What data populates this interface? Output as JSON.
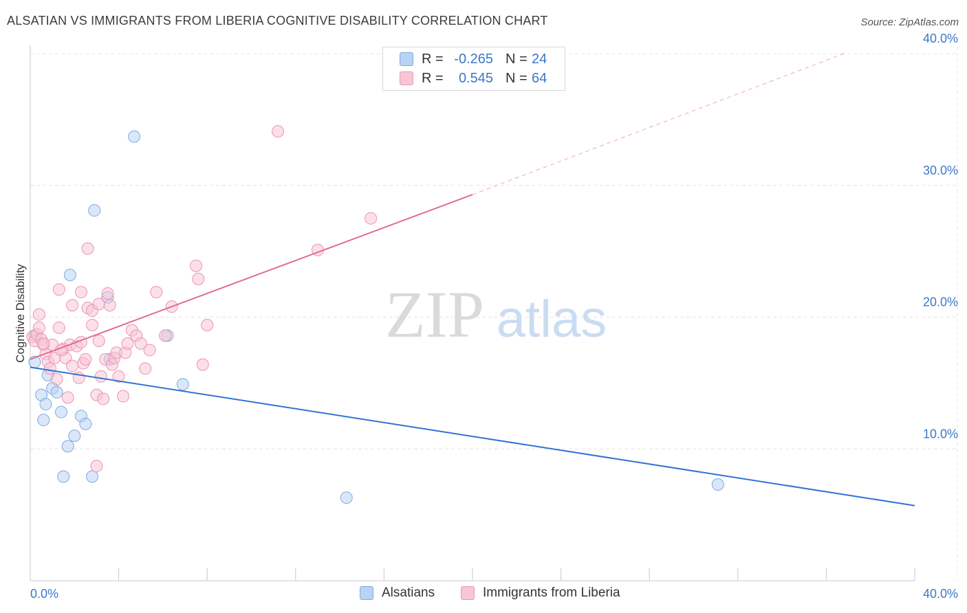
{
  "title": "ALSATIAN VS IMMIGRANTS FROM LIBERIA COGNITIVE DISABILITY CORRELATION CHART",
  "source": "Source: ZipAtlas.com",
  "watermark": {
    "zip": "ZIP",
    "atlas": "atlas"
  },
  "legend": {
    "rows": [
      {
        "r_label": "R =",
        "r_value": "-0.265",
        "n_label": "N =",
        "n_value": "24"
      },
      {
        "r_label": "R =",
        "r_value": "0.545",
        "n_label": "N =",
        "n_value": "64"
      }
    ]
  },
  "bottom_legend": {
    "series1": "Alsatians",
    "series2": "Immigrants from Liberia"
  },
  "chart_data": {
    "type": "scatter",
    "ylabel": "Cognitive Disability",
    "xlim": [
      0,
      40
    ],
    "ylim": [
      0,
      40
    ],
    "x_tick_labels": [
      "0.0%",
      "40.0%"
    ],
    "y_ticks": [
      10,
      20,
      30,
      40
    ],
    "y_tick_labels": [
      "10.0%",
      "20.0%",
      "30.0%",
      "40.0%"
    ],
    "grid": true,
    "legend_position": "top-center",
    "colors": {
      "alsatians_fill": "#b9d3f3",
      "alsatians_stroke": "#7fa9e0",
      "alsatians_line": "#2f72d4",
      "liberia_fill": "#f7c6d5",
      "liberia_stroke": "#eb94b1",
      "liberia_line": "#e26b93",
      "tick_label": "#3a78c9",
      "grid": "#e4e4e4"
    },
    "series": [
      {
        "name": "Alsatians",
        "trend": {
          "x": [
            0,
            40
          ],
          "y": [
            16.2,
            5.7
          ]
        },
        "points": [
          [
            0.2,
            18.6
          ],
          [
            0.2,
            16.6
          ],
          [
            0.5,
            14.1
          ],
          [
            0.6,
            12.2
          ],
          [
            0.7,
            13.4
          ],
          [
            0.8,
            15.6
          ],
          [
            1.0,
            14.6
          ],
          [
            1.2,
            14.3
          ],
          [
            1.4,
            12.8
          ],
          [
            1.5,
            7.9
          ],
          [
            1.7,
            10.2
          ],
          [
            1.8,
            23.2
          ],
          [
            2.0,
            11.0
          ],
          [
            2.3,
            12.5
          ],
          [
            2.5,
            11.9
          ],
          [
            2.8,
            7.9
          ],
          [
            2.9,
            28.1
          ],
          [
            3.5,
            21.5
          ],
          [
            3.6,
            16.8
          ],
          [
            4.7,
            33.7
          ],
          [
            6.2,
            18.6
          ],
          [
            6.9,
            14.9
          ],
          [
            14.3,
            6.3
          ],
          [
            31.1,
            7.3
          ]
        ]
      },
      {
        "name": "Immigrants from Liberia",
        "trend": {
          "x": [
            0,
            20
          ],
          "y": [
            16.8,
            29.3
          ]
        },
        "trend_dashed": {
          "x": [
            20,
            36.8
          ],
          "y": [
            29.3,
            40
          ]
        },
        "points": [
          [
            0.1,
            18.5
          ],
          [
            0.2,
            18.2
          ],
          [
            0.3,
            18.7
          ],
          [
            0.4,
            20.2
          ],
          [
            0.5,
            18.3
          ],
          [
            0.6,
            17.9
          ],
          [
            0.7,
            17.2
          ],
          [
            0.8,
            16.6
          ],
          [
            0.9,
            16.1
          ],
          [
            1.0,
            17.9
          ],
          [
            1.1,
            16.9
          ],
          [
            1.2,
            15.3
          ],
          [
            1.3,
            19.2
          ],
          [
            1.3,
            22.1
          ],
          [
            1.5,
            17.6
          ],
          [
            1.6,
            16.9
          ],
          [
            1.7,
            13.9
          ],
          [
            1.8,
            17.9
          ],
          [
            1.9,
            16.3
          ],
          [
            1.9,
            20.9
          ],
          [
            2.1,
            17.8
          ],
          [
            2.2,
            15.4
          ],
          [
            2.3,
            18.1
          ],
          [
            2.3,
            21.9
          ],
          [
            2.4,
            16.5
          ],
          [
            2.5,
            16.8
          ],
          [
            2.6,
            20.7
          ],
          [
            2.6,
            25.2
          ],
          [
            2.8,
            20.5
          ],
          [
            2.8,
            19.4
          ],
          [
            3.0,
            14.1
          ],
          [
            3.0,
            8.7
          ],
          [
            3.1,
            18.2
          ],
          [
            3.1,
            21.0
          ],
          [
            3.2,
            15.5
          ],
          [
            3.3,
            13.8
          ],
          [
            3.4,
            16.8
          ],
          [
            3.5,
            21.8
          ],
          [
            3.6,
            20.9
          ],
          [
            3.7,
            16.4
          ],
          [
            3.8,
            16.9
          ],
          [
            3.9,
            17.3
          ],
          [
            4.0,
            15.5
          ],
          [
            4.2,
            14.0
          ],
          [
            4.3,
            17.3
          ],
          [
            4.4,
            18.0
          ],
          [
            4.6,
            19.0
          ],
          [
            4.8,
            18.6
          ],
          [
            5.0,
            18.0
          ],
          [
            5.2,
            16.1
          ],
          [
            5.4,
            17.5
          ],
          [
            5.7,
            21.9
          ],
          [
            6.1,
            18.6
          ],
          [
            6.4,
            20.8
          ],
          [
            7.5,
            23.9
          ],
          [
            7.6,
            22.9
          ],
          [
            7.8,
            16.4
          ],
          [
            8.0,
            19.4
          ],
          [
            11.2,
            34.1
          ],
          [
            13.0,
            25.1
          ],
          [
            15.4,
            27.5
          ],
          [
            0.4,
            19.2
          ],
          [
            0.6,
            18.0
          ],
          [
            1.4,
            17.5
          ]
        ]
      }
    ]
  }
}
